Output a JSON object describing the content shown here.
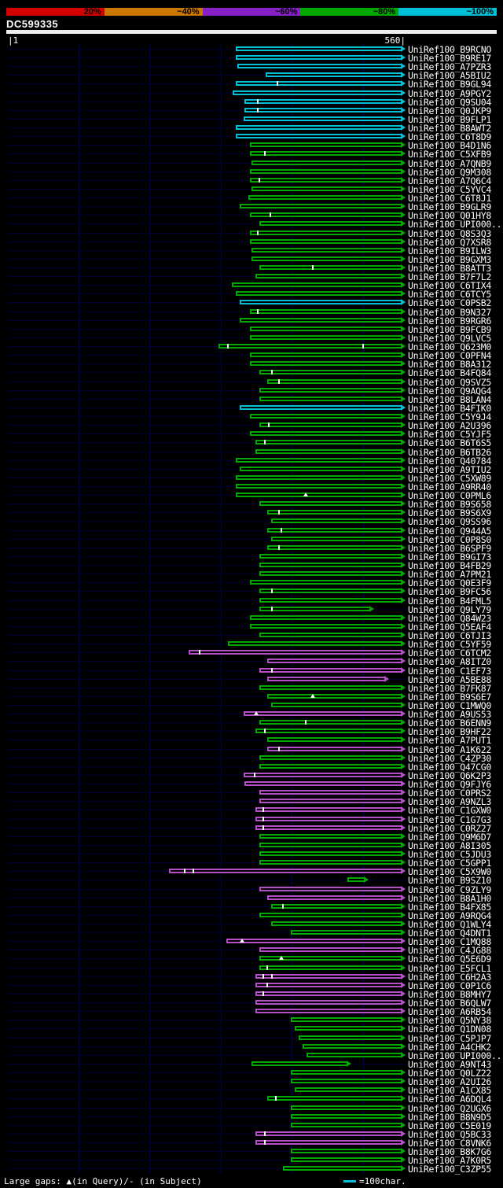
{
  "chart_data": {
    "type": "bar",
    "orientation": "horizontal-span",
    "title": "DC599335",
    "x_range": [
      1,
      560
    ],
    "x_gridlines": [
      100,
      200,
      300,
      400,
      500
    ],
    "ruler_labels": {
      "left": "|1",
      "right": "560|"
    },
    "similarity_scale": {
      "labels": [
        "20%",
        "~40%",
        "~60%",
        "~80%",
        "~100%"
      ],
      "colors": [
        "#d40000",
        "#cc7700",
        "#8820c8",
        "#00a800",
        "#00c0d8"
      ]
    },
    "bar_colors": {
      "cyan": "#00c0d8",
      "green": "#00a800",
      "magenta": "#b44fc8"
    },
    "query_bar_color": "#eeeeee",
    "footer": {
      "left": "Large gaps: ▲(in Query)/- (in Subject)",
      "scale_dash_label": "=100char.",
      "scale_dash_color": "#00c0d8"
    },
    "hits": [
      {
        "id": "UniRef100_B9RCNO",
        "color": "cyan",
        "start": 321
      },
      {
        "id": "UniRef100_B9RE17",
        "color": "cyan",
        "start": 321
      },
      {
        "id": "UniRef100_A7PZR3",
        "color": "cyan",
        "start": 323
      },
      {
        "id": "UniRef100_A5BIU2",
        "color": "cyan",
        "start": 363
      },
      {
        "id": "UniRef100_B9GL94",
        "color": "cyan",
        "start": 321,
        "ticks": [
          380
        ]
      },
      {
        "id": "UniRef100_A9PGY2",
        "color": "cyan",
        "start": 317
      },
      {
        "id": "UniRef100_Q9SU04",
        "color": "cyan",
        "start": 334,
        "ticks": [
          352
        ]
      },
      {
        "id": "UniRef100_Q0JKP9",
        "color": "cyan",
        "start": 334,
        "ticks": [
          352
        ]
      },
      {
        "id": "UniRef100_B9FLP1",
        "color": "cyan",
        "start": 332
      },
      {
        "id": "UniRef100_B8AWT2",
        "color": "cyan",
        "start": 321
      },
      {
        "id": "UniRef100_C6T8D9",
        "color": "cyan",
        "start": 321
      },
      {
        "id": "UniRef100_B4D1N6",
        "color": "green",
        "start": 341
      },
      {
        "id": "UniRef100_C5XFB9",
        "color": "green",
        "start": 341,
        "ticks": [
          362
        ]
      },
      {
        "id": "UniRef100_A7QNB9",
        "color": "green",
        "start": 343
      },
      {
        "id": "UniRef100_Q9M308",
        "color": "green",
        "start": 341
      },
      {
        "id": "UniRef100_A7Q6C4",
        "color": "green",
        "start": 341,
        "ticks": [
          355
        ]
      },
      {
        "id": "UniRef100_C5YVC4",
        "color": "green",
        "start": 343
      },
      {
        "id": "UniRef100_C6T8J1",
        "color": "green",
        "start": 339
      },
      {
        "id": "UniRef100_B9GLR9",
        "color": "green",
        "start": 327
      },
      {
        "id": "UniRef100_Q01HY8",
        "color": "green",
        "start": 341,
        "ticks": [
          370
        ]
      },
      {
        "id": "UniRef100_UPI000...",
        "color": "green",
        "start": 354
      },
      {
        "id": "UniRef100_Q8S3Q3",
        "color": "green",
        "start": 341,
        "ticks": [
          352
        ]
      },
      {
        "id": "UniRef100_Q7XSR8",
        "color": "green",
        "start": 341
      },
      {
        "id": "UniRef100_B9ILW3",
        "color": "green",
        "start": 343
      },
      {
        "id": "UniRef100_B9GXM3",
        "color": "green",
        "start": 343
      },
      {
        "id": "UniRef100_B8ATT3",
        "color": "green",
        "start": 354,
        "ticks": [
          430
        ]
      },
      {
        "id": "UniRef100_B7F7L2",
        "color": "green",
        "start": 349
      },
      {
        "id": "UniRef100_C6TIX4",
        "color": "green",
        "start": 316
      },
      {
        "id": "UniRef100_C6TCY5",
        "color": "green",
        "start": 321
      },
      {
        "id": "UniRef100_C0PSB2",
        "color": "cyan",
        "start": 327
      },
      {
        "id": "UniRef100_B9N327",
        "color": "green",
        "start": 341,
        "ticks": [
          352
        ]
      },
      {
        "id": "UniRef100_B9RGR6",
        "color": "green",
        "start": 327
      },
      {
        "id": "UniRef100_B9FCB9",
        "color": "green",
        "start": 341
      },
      {
        "id": "UniRef100_Q9LVC5",
        "color": "green",
        "start": 341
      },
      {
        "id": "UniRef100_Q623M0",
        "color": "green",
        "start": 297,
        "ticks": [
          310,
          500
        ]
      },
      {
        "id": "UniRef100_C0PFN4",
        "color": "green",
        "start": 341
      },
      {
        "id": "UniRef100_B8A312",
        "color": "green",
        "start": 341
      },
      {
        "id": "UniRef100_B4FQ84",
        "color": "green",
        "start": 354,
        "ticks": [
          372
        ]
      },
      {
        "id": "UniRef100_Q9SVZ5",
        "color": "green",
        "start": 365,
        "ticks": [
          382
        ]
      },
      {
        "id": "UniRef100_Q9AQG4",
        "color": "green",
        "start": 354
      },
      {
        "id": "UniRef100_B8LAN4",
        "color": "green",
        "start": 354
      },
      {
        "id": "UniRef100_B4FIK0",
        "color": "cyan",
        "start": 327
      },
      {
        "id": "UniRef100_C5Y9J4",
        "color": "green",
        "start": 341
      },
      {
        "id": "UniRef100_A2U396",
        "color": "green",
        "start": 354,
        "ticks": [
          368
        ]
      },
      {
        "id": "UniRef100_C5YJF5",
        "color": "green",
        "start": 341
      },
      {
        "id": "UniRef100_B6T6S5",
        "color": "green",
        "start": 349,
        "ticks": [
          362
        ]
      },
      {
        "id": "UniRef100_B6TB26",
        "color": "green",
        "start": 349
      },
      {
        "id": "UniRef100_Q40784",
        "color": "green",
        "start": 321
      },
      {
        "id": "UniRef100_A9TIU2",
        "color": "green",
        "start": 327
      },
      {
        "id": "UniRef100_C5XW89",
        "color": "green",
        "start": 321
      },
      {
        "id": "UniRef100_A9RR40",
        "color": "green",
        "start": 321
      },
      {
        "id": "UniRef100_C0PML6",
        "color": "green",
        "start": 321,
        "query_gaps": [
          420
        ]
      },
      {
        "id": "UniRef100_B9S658",
        "color": "green",
        "start": 354
      },
      {
        "id": "UniRef100_B9S6X9",
        "color": "green",
        "start": 365,
        "ticks": [
          382
        ]
      },
      {
        "id": "UniRef100_Q9SS96",
        "color": "green",
        "start": 371
      },
      {
        "id": "UniRef100_Q944A5",
        "color": "green",
        "start": 365,
        "ticks": [
          385
        ]
      },
      {
        "id": "UniRef100_C0P8S0",
        "color": "green",
        "start": 371
      },
      {
        "id": "UniRef100_B6SPF9",
        "color": "green",
        "start": 365,
        "ticks": [
          382
        ]
      },
      {
        "id": "UniRef100_B9GI73",
        "color": "green",
        "start": 354
      },
      {
        "id": "UniRef100_B4FB29",
        "color": "green",
        "start": 354
      },
      {
        "id": "UniRef100_A7PM21",
        "color": "green",
        "start": 354
      },
      {
        "id": "UniRef100_Q0E3F9",
        "color": "green",
        "start": 341
      },
      {
        "id": "UniRef100_B9FC56",
        "color": "green",
        "start": 354,
        "ticks": [
          372
        ]
      },
      {
        "id": "UniRef100_B4FML5",
        "color": "green",
        "start": 354
      },
      {
        "id": "UniRef100_Q9LY79",
        "color": "green",
        "start": 354,
        "end": 516,
        "ticks": [
          372
        ]
      },
      {
        "id": "UniRef100_Q84W23",
        "color": "green",
        "start": 341
      },
      {
        "id": "UniRef100_Q5EAF4",
        "color": "green",
        "start": 341
      },
      {
        "id": "UniRef100_C6TJI3",
        "color": "green",
        "start": 354
      },
      {
        "id": "UniRef100_C5YF59",
        "color": "green",
        "start": 310
      },
      {
        "id": "UniRef100_C6TCM2",
        "color": "magenta",
        "start": 255,
        "ticks": [
          270
        ]
      },
      {
        "id": "UniRef100_A8ITZ0",
        "color": "magenta",
        "start": 365
      },
      {
        "id": "UniRef100_C1EF73",
        "color": "magenta",
        "start": 354,
        "ticks": [
          372
        ]
      },
      {
        "id": "UniRef100_A5BE88",
        "color": "magenta",
        "start": 365,
        "end": 537
      },
      {
        "id": "UniRef100_B7FK87",
        "color": "green",
        "start": 354
      },
      {
        "id": "UniRef100_B9S6E7",
        "color": "green",
        "start": 365,
        "query_gaps": [
          430
        ]
      },
      {
        "id": "UniRef100_C1MWQ0",
        "color": "green",
        "start": 371
      },
      {
        "id": "UniRef100_A9US53",
        "color": "magenta",
        "start": 332,
        "query_gaps": [
          350
        ]
      },
      {
        "id": "UniRef100_B6ENN9",
        "color": "green",
        "start": 354,
        "ticks": [
          420
        ]
      },
      {
        "id": "UniRef100_B9HF22",
        "color": "green",
        "start": 349,
        "ticks": [
          362
        ]
      },
      {
        "id": "UniRef100_A7PUT1",
        "color": "green",
        "start": 365
      },
      {
        "id": "UniRef100_A1K622",
        "color": "magenta",
        "start": 365,
        "ticks": [
          382
        ]
      },
      {
        "id": "UniRef100_C4ZP30",
        "color": "green",
        "start": 354
      },
      {
        "id": "UniRef100_Q47CG0",
        "color": "green",
        "start": 354
      },
      {
        "id": "UniRef100_Q6K2P3",
        "color": "magenta",
        "start": 332,
        "ticks": [
          348
        ]
      },
      {
        "id": "UniRef100_Q9FJY6",
        "color": "magenta",
        "start": 334
      },
      {
        "id": "UniRef100_C0PRS2",
        "color": "magenta",
        "start": 354
      },
      {
        "id": "UniRef100_A9NZL3",
        "color": "magenta",
        "start": 354
      },
      {
        "id": "UniRef100_C1GXW0",
        "color": "magenta",
        "start": 349,
        "ticks": [
          360
        ]
      },
      {
        "id": "UniRef100_C1G7G3",
        "color": "magenta",
        "start": 349,
        "ticks": [
          360
        ]
      },
      {
        "id": "UniRef100_C0RZ27",
        "color": "magenta",
        "start": 349,
        "ticks": [
          360
        ]
      },
      {
        "id": "UniRef100_Q9M6D7",
        "color": "green",
        "start": 354
      },
      {
        "id": "UniRef100_A8I305",
        "color": "green",
        "start": 354
      },
      {
        "id": "UniRef100_C5JDU3",
        "color": "green",
        "start": 354
      },
      {
        "id": "UniRef100_C5GPP1",
        "color": "green",
        "start": 354
      },
      {
        "id": "UniRef100_C5X9W0",
        "color": "magenta",
        "start": 227,
        "ticks": [
          250,
          262
        ]
      },
      {
        "id": "UniRef100_B9SZ10",
        "color": "green",
        "start": 478,
        "end": 508
      },
      {
        "id": "UniRef100_C9ZLY9",
        "color": "magenta",
        "start": 354
      },
      {
        "id": "UniRef100_B8A1H0",
        "color": "magenta",
        "start": 365
      },
      {
        "id": "UniRef100_B4FX85",
        "color": "green",
        "start": 371,
        "ticks": [
          388
        ]
      },
      {
        "id": "UniRef100_A9RQG4",
        "color": "green",
        "start": 354
      },
      {
        "id": "UniRef100_Q1WLY4",
        "color": "green",
        "start": 371
      },
      {
        "id": "UniRef100_Q4DNT1",
        "color": "green",
        "start": 399
      },
      {
        "id": "UniRef100_C1MQ88",
        "color": "magenta",
        "start": 308,
        "query_gaps": [
          330
        ]
      },
      {
        "id": "UniRef100_C4JG88",
        "color": "magenta",
        "start": 354
      },
      {
        "id": "UniRef100_Q5E6D9",
        "color": "green",
        "start": 354,
        "query_gaps": [
          385
        ]
      },
      {
        "id": "UniRef100_E5FCL1",
        "color": "green",
        "start": 354,
        "ticks": [
          365
        ]
      },
      {
        "id": "UniRef100_C6H2A3",
        "color": "magenta",
        "start": 349,
        "ticks": [
          360,
          372
        ]
      },
      {
        "id": "UniRef100_C0P1C6",
        "color": "magenta",
        "start": 349,
        "ticks": [
          365
        ]
      },
      {
        "id": "UniRef100_B8MHY7",
        "color": "magenta",
        "start": 349,
        "ticks": [
          360
        ]
      },
      {
        "id": "UniRef100_B6QLW7",
        "color": "magenta",
        "start": 349
      },
      {
        "id": "UniRef100_A6RB54",
        "color": "magenta",
        "start": 349
      },
      {
        "id": "UniRef100_Q5NY38",
        "color": "green",
        "start": 399
      },
      {
        "id": "UniRef100_Q1DN08",
        "color": "green",
        "start": 404
      },
      {
        "id": "UniRef100_C5PJP7",
        "color": "green",
        "start": 410
      },
      {
        "id": "UniRef100_A4CHK2",
        "color": "green",
        "start": 415
      },
      {
        "id": "UniRef100_UPI000...",
        "color": "green",
        "start": 421
      },
      {
        "id": "UniRef100_A9NT43",
        "color": "green",
        "start": 343,
        "end": 484
      },
      {
        "id": "UniRef100_Q0LZ22",
        "color": "green",
        "start": 399
      },
      {
        "id": "UniRef100_A2UI26",
        "color": "green",
        "start": 399
      },
      {
        "id": "UniRef100_A1CX85",
        "color": "green",
        "start": 404
      },
      {
        "id": "UniRef100_A6DQL4",
        "color": "green",
        "start": 365,
        "ticks": [
          378
        ]
      },
      {
        "id": "UniRef100_Q2UGX6",
        "color": "green",
        "start": 399
      },
      {
        "id": "UniRef100_B8N9D5",
        "color": "green",
        "start": 399
      },
      {
        "id": "UniRef100_C5E019",
        "color": "green",
        "start": 399
      },
      {
        "id": "UniRef100_Q5BC33",
        "color": "magenta",
        "start": 349,
        "ticks": [
          362
        ]
      },
      {
        "id": "UniRef100_C8VNK6",
        "color": "magenta",
        "start": 349,
        "ticks": [
          362
        ]
      },
      {
        "id": "UniRef100_B8K7G6",
        "color": "green",
        "start": 399
      },
      {
        "id": "UniRef100_A7K0R5",
        "color": "green",
        "start": 399
      },
      {
        "id": "UniRef100_C3ZP55",
        "color": "green",
        "start": 388
      }
    ]
  }
}
